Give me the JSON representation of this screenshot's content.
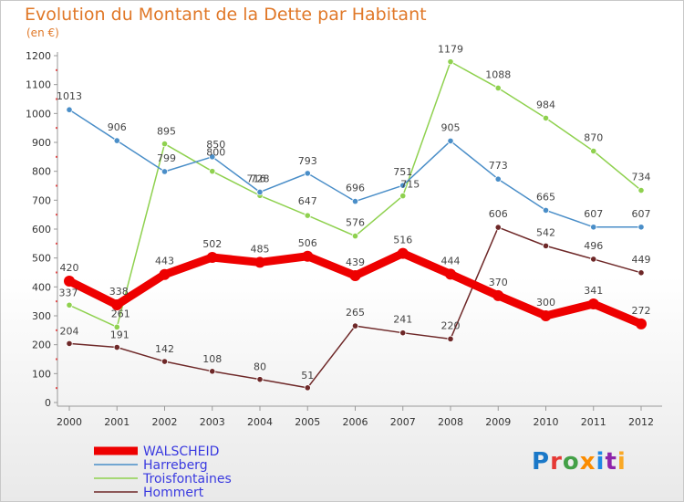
{
  "title": "Evolution du Montant de la Dette par Habitant",
  "unit": "(en €)",
  "logo": {
    "text": "Proxiti",
    "colors": [
      "#1a78c8",
      "#e53935",
      "#43a047",
      "#fb8c00",
      "#1e88e5",
      "#8e24aa",
      "#f9a825"
    ]
  },
  "chart_data": {
    "type": "line",
    "x": [
      "2000",
      "2001",
      "2002",
      "2003",
      "2004",
      "2005",
      "2006",
      "2007",
      "2008",
      "2009",
      "2010",
      "2011",
      "2012"
    ],
    "ylim": [
      0,
      1200
    ],
    "yticks": [
      0,
      100,
      200,
      300,
      400,
      500,
      600,
      700,
      800,
      900,
      1000,
      1100,
      1200
    ],
    "grid": false,
    "legend_position": "bottom-left",
    "series": [
      {
        "name": "Hommert",
        "color": "#6e2828",
        "values": [
          204,
          191,
          142,
          108,
          80,
          51,
          265,
          241,
          220,
          606,
          542,
          496,
          449
        ]
      },
      {
        "name": "Troisfontaines",
        "color": "#8fd14f",
        "values": [
          337,
          261,
          895,
          800,
          716,
          647,
          576,
          715,
          1179,
          1088,
          984,
          870,
          734
        ]
      },
      {
        "name": "Harreberg",
        "color": "#4a8ec8",
        "values": [
          1013,
          906,
          799,
          850,
          728,
          793,
          696,
          751,
          905,
          773,
          665,
          607,
          607
        ]
      },
      {
        "name": "WALSCHEID",
        "color": "#ee0000",
        "values": [
          420,
          338,
          443,
          502,
          485,
          506,
          439,
          516,
          444,
          370,
          300,
          341,
          272
        ]
      }
    ]
  }
}
